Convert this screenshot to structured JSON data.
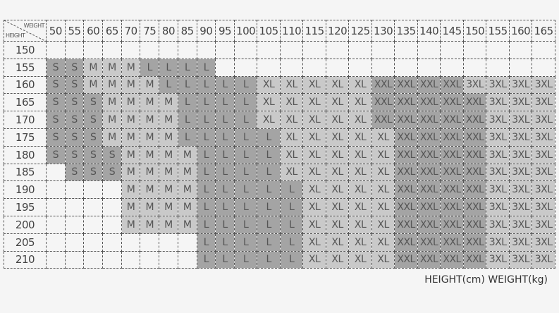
{
  "corner": {
    "weight_label": "WEIGHT",
    "height_label": "HEIGHT"
  },
  "weights": [
    "50",
    "55",
    "60",
    "65",
    "70",
    "75",
    "80",
    "85",
    "90",
    "95",
    "100",
    "105",
    "110",
    "115",
    "120",
    "125",
    "130",
    "135",
    "140",
    "145",
    "150",
    "155",
    "160",
    "165"
  ],
  "rows": [
    {
      "height": "150",
      "sizes": [
        "",
        "",
        "",
        "",
        "",
        "",
        "",
        "",
        "",
        "",
        "",
        "",
        "",
        "",
        "",
        "",
        "",
        "",
        "",
        "",
        "",
        "",
        "",
        ""
      ]
    },
    {
      "height": "155",
      "sizes": [
        "S",
        "S",
        "M",
        "M",
        "M",
        "L",
        "L",
        "L",
        "L",
        "",
        "",
        "",
        "",
        "",
        "",
        "",
        "",
        "",
        "",
        "",
        "",
        "",
        "",
        ""
      ]
    },
    {
      "height": "160",
      "sizes": [
        "S",
        "S",
        "M",
        "M",
        "M",
        "M",
        "L",
        "L",
        "L",
        "L",
        "L",
        "XL",
        "XL",
        "XL",
        "XL",
        "XL",
        "XXL",
        "XXL",
        "XXL",
        "XXL",
        "3XL",
        "3XL",
        "3XL",
        "3XL"
      ]
    },
    {
      "height": "165",
      "sizes": [
        "S",
        "S",
        "S",
        "M",
        "M",
        "M",
        "M",
        "L",
        "L",
        "L",
        "L",
        "XL",
        "XL",
        "XL",
        "XL",
        "XL",
        "XXL",
        "XXL",
        "XXL",
        "XXL",
        "XXL",
        "3XL",
        "3XL",
        "3XL"
      ]
    },
    {
      "height": "170",
      "sizes": [
        "S",
        "S",
        "S",
        "M",
        "M",
        "M",
        "M",
        "L",
        "L",
        "L",
        "L",
        "XL",
        "XL",
        "XL",
        "XL",
        "XL",
        "XXL",
        "XXL",
        "XXL",
        "XXL",
        "XXL",
        "3XL",
        "3XL",
        "3XL"
      ]
    },
    {
      "height": "175",
      "sizes": [
        "S",
        "S",
        "S",
        "M",
        "M",
        "M",
        "M",
        "L",
        "L",
        "L",
        "L",
        "L",
        "XL",
        "XL",
        "XL",
        "XL",
        "XL",
        "XXL",
        "XXL",
        "XXL",
        "XXL",
        "3XL",
        "3XL",
        "3XL"
      ]
    },
    {
      "height": "180",
      "sizes": [
        "S",
        "S",
        "S",
        "S",
        "M",
        "M",
        "M",
        "M",
        "L",
        "L",
        "L",
        "L",
        "XL",
        "XL",
        "XL",
        "XL",
        "XL",
        "XXL",
        "XXL",
        "XXL",
        "XXL",
        "3XL",
        "3XL",
        "3XL"
      ]
    },
    {
      "height": "185",
      "sizes": [
        "",
        "S",
        "S",
        "S",
        "M",
        "M",
        "M",
        "M",
        "L",
        "L",
        "L",
        "L",
        "XL",
        "XL",
        "XL",
        "XL",
        "XL",
        "XXL",
        "XXL",
        "XXL",
        "XXL",
        "3XL",
        "3XL",
        "3XL"
      ]
    },
    {
      "height": "190",
      "sizes": [
        "",
        "",
        "",
        "",
        "M",
        "M",
        "M",
        "M",
        "L",
        "L",
        "L",
        "L",
        "L",
        "XL",
        "XL",
        "XL",
        "XL",
        "XXL",
        "XXL",
        "XXL",
        "XXL",
        "3XL",
        "3XL",
        "3XL"
      ]
    },
    {
      "height": "195",
      "sizes": [
        "",
        "",
        "",
        "",
        "M",
        "M",
        "M",
        "M",
        "L",
        "L",
        "L",
        "L",
        "L",
        "XL",
        "XL",
        "XL",
        "XL",
        "XXL",
        "XXL",
        "XXL",
        "XXL",
        "3XL",
        "3XL",
        "3XL"
      ]
    },
    {
      "height": "200",
      "sizes": [
        "",
        "",
        "",
        "",
        "M",
        "M",
        "M",
        "M",
        "L",
        "L",
        "L",
        "L",
        "L",
        "XL",
        "XL",
        "XL",
        "XL",
        "XXL",
        "XXL",
        "XXL",
        "XXL",
        "3XL",
        "3XL",
        "3XL"
      ]
    },
    {
      "height": "205",
      "sizes": [
        "",
        "",
        "",
        "",
        "",
        "",
        "",
        "",
        "L",
        "L",
        "L",
        "L",
        "L",
        "XL",
        "XL",
        "XL",
        "XL",
        "XXL",
        "XXL",
        "XXL",
        "XXL",
        "3XL",
        "3XL",
        "3XL"
      ]
    },
    {
      "height": "210",
      "sizes": [
        "",
        "",
        "",
        "",
        "",
        "",
        "",
        "",
        "L",
        "L",
        "L",
        "L",
        "L",
        "XL",
        "XL",
        "XL",
        "XL",
        "XXL",
        "XXL",
        "XXL",
        "XXL",
        "3XL",
        "3XL",
        "3XL"
      ]
    }
  ],
  "size_shades": {
    "S": "#a4a4a4",
    "M": "#c9c9c9",
    "L": "#a4a4a4",
    "XL": "#c9c9c9",
    "XXL": "#a4a4a4",
    "3XL": "#c9c9c9"
  },
  "footer": "HEIGHT(cm) WEIGHT(kg)"
}
